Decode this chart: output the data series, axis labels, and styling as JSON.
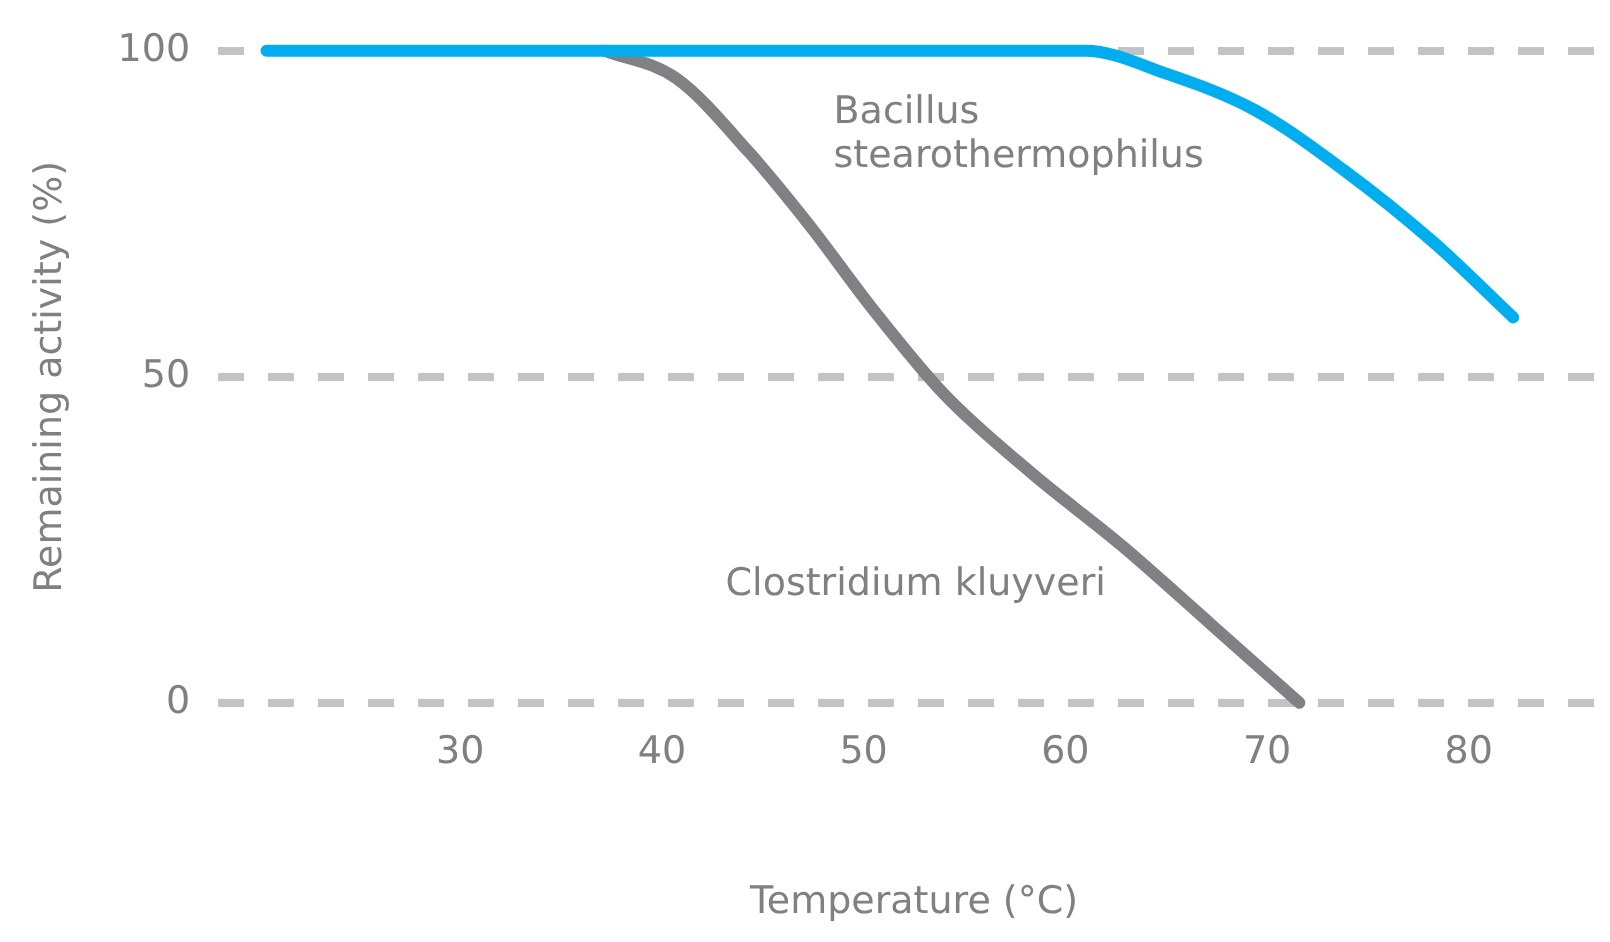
{
  "chart_data": {
    "type": "line",
    "xlabel": "Temperature (°C)",
    "ylabel": "Remaining activity (%)",
    "xlim": [
      18,
      87
    ],
    "xticks": [
      30,
      40,
      50,
      60,
      70,
      80
    ],
    "ylim": [
      0,
      100
    ],
    "yticks": [
      0,
      50,
      100
    ],
    "grid": "y",
    "marker": "none",
    "line_style": "solid",
    "legend": false,
    "series": [
      {
        "name": "Bacillus stearothermophilus",
        "color": "#00aeef",
        "x": [
          20.4,
          61,
          65,
          69.4,
          73.8,
          78.3,
          82.2
        ],
        "values": [
          100,
          100,
          96.5,
          90.9,
          81.7,
          70.5,
          59.1
        ]
      },
      {
        "name": "Clostridium kluyveri",
        "color": "#808085",
        "x": [
          37.2,
          40.7,
          44.3,
          47.3,
          50.4,
          54,
          58.3,
          62.8,
          67.2,
          71.6
        ],
        "values": [
          100,
          95.8,
          84.5,
          73.3,
          60.6,
          47.3,
          35.3,
          24.1,
          12.1,
          0
        ]
      }
    ]
  }
}
